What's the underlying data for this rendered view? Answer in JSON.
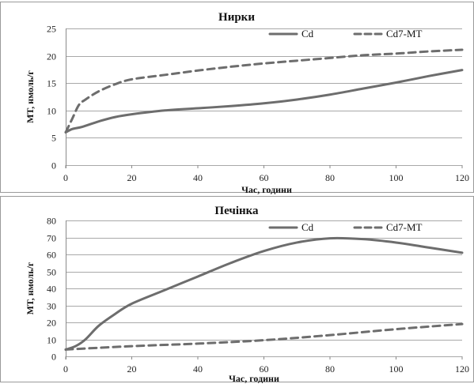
{
  "chart_data": [
    {
      "type": "line",
      "title": "Нирки",
      "xlabel": "Час, години",
      "ylabel": "МТ, нмоль/г",
      "xlim": [
        0,
        120
      ],
      "ylim": [
        0,
        25
      ],
      "xticks": [
        0,
        20,
        40,
        60,
        80,
        100,
        120
      ],
      "yticks": [
        0,
        5,
        10,
        15,
        20,
        25
      ],
      "grid": "horizontal",
      "legend_position": "top-right",
      "series": [
        {
          "name": "Cd",
          "style": "solid",
          "color": "#6d6d6d",
          "points": [
            [
              0,
              6
            ],
            [
              2,
              6.6
            ],
            [
              5,
              7
            ],
            [
              10,
              8
            ],
            [
              15,
              8.8
            ],
            [
              20,
              9.3
            ],
            [
              30,
              10
            ],
            [
              40,
              10.4
            ],
            [
              50,
              10.8
            ],
            [
              60,
              11.3
            ],
            [
              70,
              12
            ],
            [
              80,
              12.9
            ],
            [
              90,
              14
            ],
            [
              100,
              15.1
            ],
            [
              110,
              16.3
            ],
            [
              120,
              17.4
            ]
          ]
        },
        {
          "name": "Cd7-MT",
          "style": "dashed",
          "color": "#6d6d6d",
          "points": [
            [
              0,
              6
            ],
            [
              2,
              8.5
            ],
            [
              4,
              11
            ],
            [
              6,
              12
            ],
            [
              10,
              13.5
            ],
            [
              15,
              14.8
            ],
            [
              20,
              15.7
            ],
            [
              30,
              16.5
            ],
            [
              40,
              17.3
            ],
            [
              50,
              18
            ],
            [
              60,
              18.6
            ],
            [
              70,
              19.1
            ],
            [
              80,
              19.6
            ],
            [
              90,
              20.1
            ],
            [
              100,
              20.4
            ],
            [
              110,
              20.8
            ],
            [
              120,
              21.1
            ]
          ]
        }
      ]
    },
    {
      "type": "line",
      "title": "Печінка",
      "xlabel": "Час, години",
      "ylabel": "МТ, нмоль/г",
      "xlim": [
        0,
        120
      ],
      "ylim": [
        0,
        80
      ],
      "xticks": [
        0,
        20,
        40,
        60,
        80,
        100,
        120
      ],
      "yticks": [
        0,
        10,
        20,
        30,
        40,
        50,
        60,
        70,
        80
      ],
      "grid": "horizontal",
      "legend_position": "top-right",
      "series": [
        {
          "name": "Cd",
          "style": "solid",
          "color": "#6d6d6d",
          "points": [
            [
              0,
              4
            ],
            [
              3,
              6
            ],
            [
              6,
              10
            ],
            [
              10,
              18
            ],
            [
              15,
              25
            ],
            [
              20,
              31
            ],
            [
              30,
              39
            ],
            [
              40,
              47
            ],
            [
              50,
              55
            ],
            [
              60,
              62
            ],
            [
              70,
              67
            ],
            [
              80,
              69.5
            ],
            [
              90,
              69
            ],
            [
              100,
              67
            ],
            [
              110,
              64
            ],
            [
              120,
              61
            ]
          ]
        },
        {
          "name": "Cd7-MT",
          "style": "dashed",
          "color": "#6d6d6d",
          "points": [
            [
              0,
              4
            ],
            [
              20,
              6
            ],
            [
              40,
              7.5
            ],
            [
              60,
              9.5
            ],
            [
              80,
              12.5
            ],
            [
              100,
              16
            ],
            [
              120,
              19
            ]
          ]
        }
      ]
    }
  ]
}
